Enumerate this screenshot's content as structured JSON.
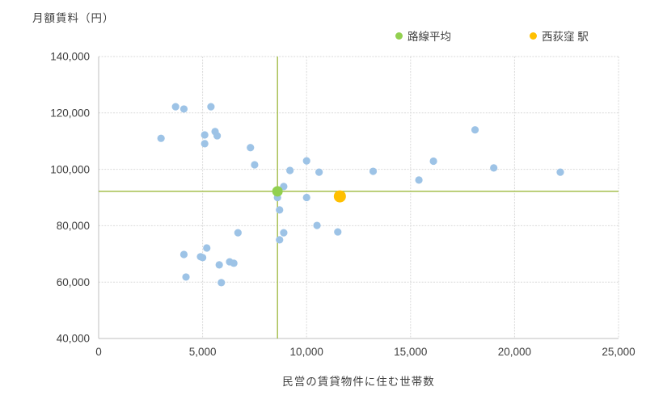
{
  "legend": {
    "items": [
      {
        "label": "路線平均",
        "color": "#92d050"
      },
      {
        "label": "西荻窪 駅",
        "color": "#ffc000"
      }
    ]
  },
  "chart_data": {
    "type": "scatter",
    "title": "",
    "ylabel": "月額賃料（円）",
    "xlabel": "民営の賃貸物件に住む世帯数",
    "xlim": [
      0,
      25000
    ],
    "ylim": [
      40000,
      140000
    ],
    "x_ticks": [
      0,
      5000,
      10000,
      15000,
      20000,
      25000
    ],
    "y_ticks": [
      40000,
      60000,
      80000,
      100000,
      120000,
      140000
    ],
    "grid": true,
    "gridline_color": "#d9d9d9",
    "axis_color": "#bfbfbf",
    "tick_label_color": "#404040",
    "legend_position": "top",
    "series": [
      {
        "name": "",
        "color": "#9dc3e6",
        "marker_radius": 4.6,
        "points": [
          [
            3000,
            111000
          ],
          [
            3700,
            122200
          ],
          [
            4100,
            121400
          ],
          [
            5400,
            122200
          ],
          [
            5100,
            112200
          ],
          [
            5600,
            113400
          ],
          [
            5700,
            111900
          ],
          [
            5100,
            109100
          ],
          [
            7300,
            107700
          ],
          [
            7500,
            101600
          ],
          [
            6700,
            77500
          ],
          [
            4100,
            69800
          ],
          [
            5200,
            72100
          ],
          [
            4900,
            69000
          ],
          [
            5000,
            68700
          ],
          [
            5800,
            66100
          ],
          [
            6300,
            67200
          ],
          [
            6500,
            66700
          ],
          [
            4200,
            61800
          ],
          [
            5900,
            59800
          ],
          [
            8900,
            93900
          ],
          [
            8600,
            90000
          ],
          [
            10000,
            90000
          ],
          [
            8700,
            85600
          ],
          [
            10500,
            80100
          ],
          [
            8900,
            77500
          ],
          [
            8700,
            75000
          ],
          [
            10000,
            103000
          ],
          [
            9200,
            99600
          ],
          [
            10600,
            99000
          ],
          [
            11500,
            77800
          ],
          [
            13200,
            99300
          ],
          [
            15400,
            96200
          ],
          [
            16100,
            102900
          ],
          [
            18100,
            114000
          ],
          [
            19000,
            100500
          ],
          [
            22200,
            99000
          ]
        ]
      },
      {
        "name": "路線平均",
        "color": "#92d050",
        "marker_radius": 6.5,
        "points": [
          [
            8600,
            92200
          ]
        ]
      },
      {
        "name": "西荻窪 駅",
        "color": "#ffc000",
        "marker_radius": 7.5,
        "points": [
          [
            11600,
            90400
          ]
        ]
      }
    ],
    "reference_lines": {
      "x": 8600,
      "y": 92200,
      "color": "#9cb83c"
    }
  }
}
